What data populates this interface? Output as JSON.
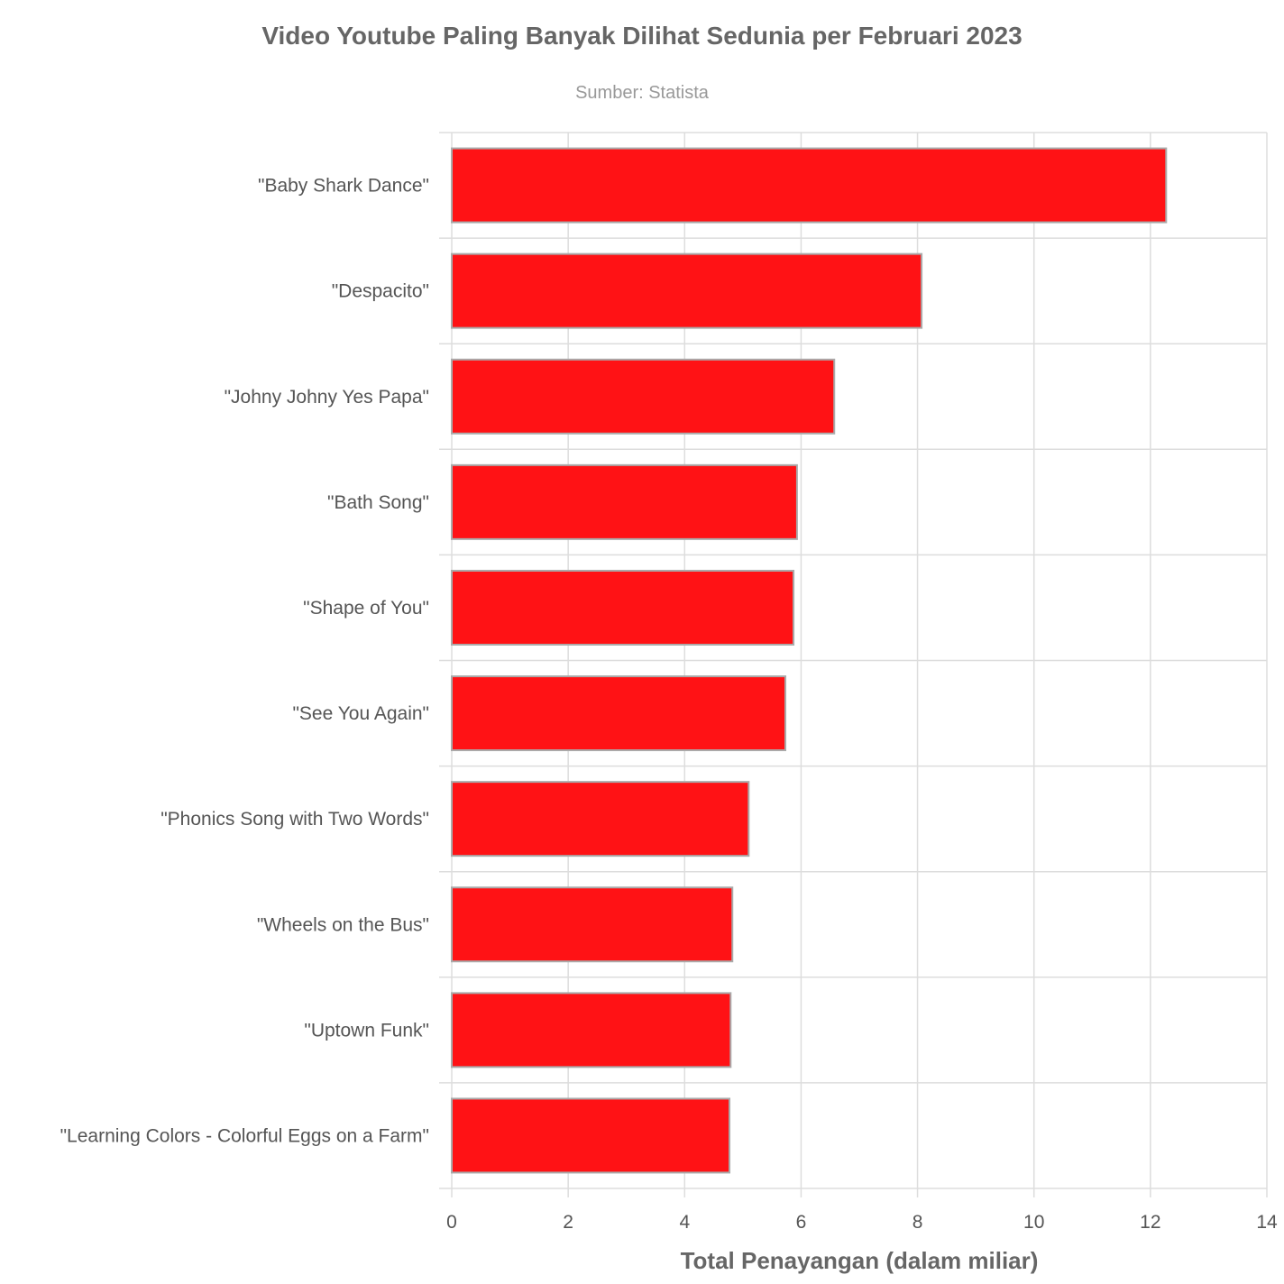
{
  "chart_data": {
    "type": "bar",
    "orientation": "horizontal",
    "title": "Video Youtube Paling Banyak Dilihat Sedunia per Februari 2023",
    "subtitle": "Sumber: Statista",
    "xlabel": "Total Penayangan (dalam miliar)",
    "ylabel": "",
    "xlim": [
      0,
      14
    ],
    "xticks": [
      0,
      2,
      4,
      6,
      8,
      10,
      12,
      14
    ],
    "grid": true,
    "categories": [
      "\"Baby Shark Dance\"",
      "\"Despacito\"",
      "\"Johny Johny Yes Papa\"",
      "\"Bath Song\"",
      "\"Shape of You\"",
      "\"See You Again\"",
      "\"Phonics Song with Two Words\"",
      "\"Wheels on the Bus\"",
      "\"Uptown Funk\"",
      "\"Learning Colors - Colorful Eggs on a Farm\""
    ],
    "values": [
      12.27,
      8.07,
      6.57,
      5.93,
      5.87,
      5.73,
      5.1,
      4.82,
      4.79,
      4.77
    ],
    "colors": {
      "bar": "#ff1215",
      "bar_border": "#aaaaaa",
      "grid": "#dddddd"
    }
  }
}
